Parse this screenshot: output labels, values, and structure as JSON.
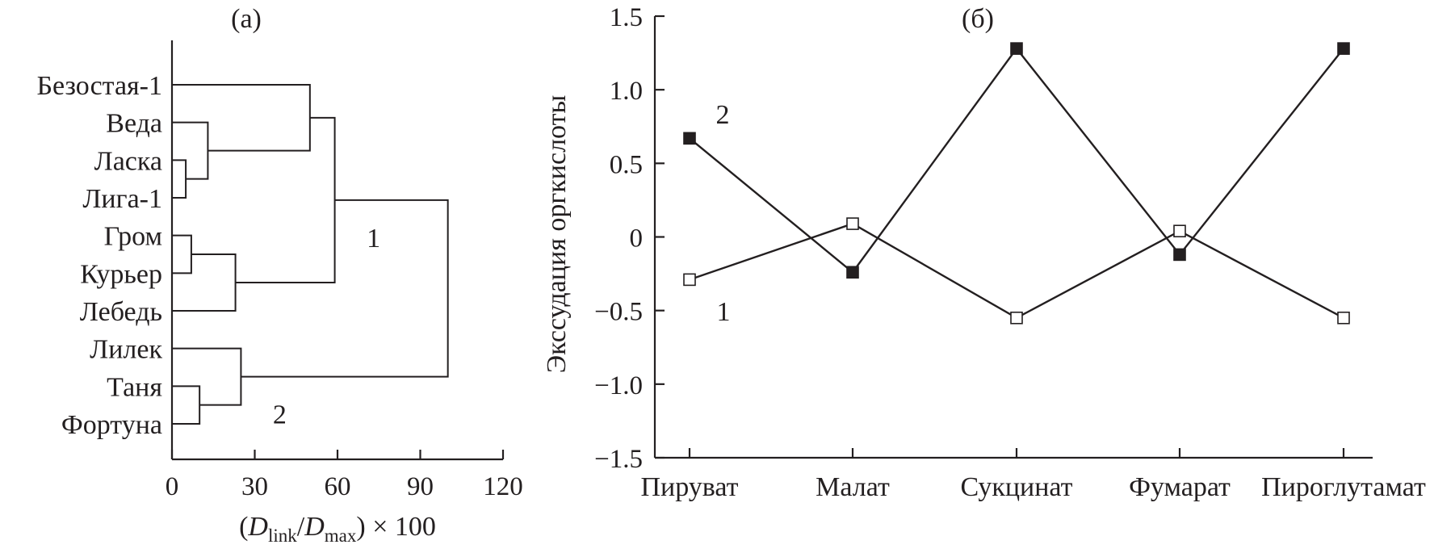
{
  "panels": {
    "a_label": "(а)",
    "b_label": "(б)"
  },
  "chart_data": [
    {
      "type": "dendrogram",
      "panel": "(а)",
      "xlabel": {
        "open": "(",
        "d1": "D",
        "sub1": "link",
        "slash": "/",
        "d2": "D",
        "sub2": "max",
        "close": ") × 100"
      },
      "xlim": [
        0,
        120
      ],
      "xticks": [
        "0",
        "30",
        "60",
        "90",
        "120"
      ],
      "leaves": [
        "Безостая-1",
        "Веда",
        "Ласка",
        "Лига-1",
        "Гром",
        "Курьер",
        "Лебедь",
        "Лилек",
        "Таня",
        "Фортуна"
      ],
      "merges": [
        {
          "a": "leaf:Ласка",
          "b": "leaf:Лига-1",
          "height": 5
        },
        {
          "a": "leaf:Веда",
          "b": "node:0",
          "height": 13
        },
        {
          "a": "leaf:Безостая-1",
          "b": "node:1",
          "height": 50
        },
        {
          "a": "leaf:Гром",
          "b": "leaf:Курьер",
          "height": 7
        },
        {
          "a": "node:3",
          "b": "leaf:Лебедь",
          "height": 23
        },
        {
          "a": "node:2",
          "b": "node:4",
          "height": 59
        },
        {
          "a": "leaf:Таня",
          "b": "leaf:Фортуна",
          "height": 10
        },
        {
          "a": "leaf:Лилек",
          "b": "node:6",
          "height": 25
        },
        {
          "a": "node:5",
          "b": "node:7",
          "height": 100
        }
      ],
      "cluster_labels": [
        {
          "text": "1",
          "node": 5
        },
        {
          "text": "2",
          "node": 7
        }
      ]
    },
    {
      "type": "line",
      "panel": "(б)",
      "categories": [
        "Пируват",
        "Малат",
        "Сукцинат",
        "Фумарат",
        "Пироглутамат"
      ],
      "ylabel": "Экссудация оргкислоты",
      "ylim": [
        -1.5,
        1.5
      ],
      "yticks": [
        "1.5",
        "1.0",
        "0.5",
        "0",
        "−0.5",
        "−1.0",
        "−1.5"
      ],
      "grid": false,
      "series": [
        {
          "name": "1",
          "marker": "open-square",
          "values": [
            -0.29,
            0.09,
            -0.55,
            0.04,
            -0.55
          ]
        },
        {
          "name": "2",
          "marker": "filled-square",
          "values": [
            0.67,
            -0.24,
            1.28,
            -0.12,
            1.28
          ]
        }
      ],
      "colors": {
        "ink": "#231f20",
        "background": "#ffffff"
      }
    }
  ]
}
